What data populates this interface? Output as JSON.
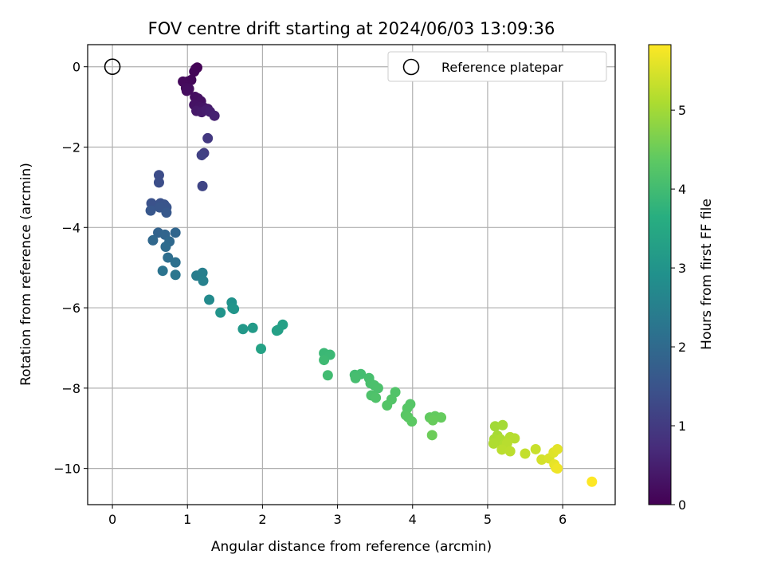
{
  "chart_data": {
    "type": "scatter",
    "title": "FOV centre drift starting at 2024/06/03 13:09:36",
    "xlabel": "Angular distance from reference (arcmin)",
    "ylabel": "Rotation from reference (arcmin)",
    "xlim": [
      -0.33,
      6.7
    ],
    "ylim": [
      -10.9,
      0.55
    ],
    "xticks": [
      0,
      1,
      2,
      3,
      4,
      5,
      6
    ],
    "yticks": [
      0,
      -2,
      -4,
      -6,
      -8,
      -10
    ],
    "xtick_labels": [
      "0",
      "1",
      "2",
      "3",
      "4",
      "5",
      "6"
    ],
    "ytick_labels": [
      "0",
      "−2",
      "−4",
      "−6",
      "−8",
      "−10"
    ],
    "grid": true,
    "legend": {
      "placement": "top-right",
      "label": "Reference platepar"
    },
    "reference_point": {
      "x": 0,
      "y": 0
    },
    "colorbar": {
      "label": "Hours from first FF file",
      "colormap": "viridis",
      "min": 0,
      "max": 5.83,
      "ticks": [
        0,
        1,
        2,
        3,
        4,
        5
      ],
      "tick_labels": [
        "0",
        "1",
        "2",
        "3",
        "4",
        "5"
      ]
    },
    "points": [
      {
        "x": 1.13,
        "y": -0.02,
        "c": 0.03
      },
      {
        "x": 1.11,
        "y": -0.05,
        "c": 0.05
      },
      {
        "x": 1.09,
        "y": -0.12,
        "c": 0.07
      },
      {
        "x": 1.05,
        "y": -0.33,
        "c": 0.1
      },
      {
        "x": 1.0,
        "y": -0.37,
        "c": 0.12
      },
      {
        "x": 0.94,
        "y": -0.37,
        "c": 0.14
      },
      {
        "x": 0.98,
        "y": -0.53,
        "c": 0.16
      },
      {
        "x": 1.02,
        "y": -0.55,
        "c": 0.18
      },
      {
        "x": 0.99,
        "y": -0.6,
        "c": 0.2
      },
      {
        "x": 1.1,
        "y": -0.75,
        "c": 0.22
      },
      {
        "x": 1.14,
        "y": -0.79,
        "c": 0.24
      },
      {
        "x": 1.18,
        "y": -0.86,
        "c": 0.27
      },
      {
        "x": 1.09,
        "y": -0.95,
        "c": 0.3
      },
      {
        "x": 1.16,
        "y": -1.0,
        "c": 0.32
      },
      {
        "x": 1.22,
        "y": -1.02,
        "c": 0.35
      },
      {
        "x": 1.27,
        "y": -1.05,
        "c": 0.38
      },
      {
        "x": 1.12,
        "y": -1.1,
        "c": 0.4
      },
      {
        "x": 1.19,
        "y": -1.13,
        "c": 0.43
      },
      {
        "x": 1.25,
        "y": -1.08,
        "c": 0.46
      },
      {
        "x": 1.3,
        "y": -1.12,
        "c": 0.5
      },
      {
        "x": 1.36,
        "y": -1.22,
        "c": 0.55
      },
      {
        "x": 1.27,
        "y": -1.78,
        "c": 0.95
      },
      {
        "x": 1.22,
        "y": -2.15,
        "c": 1.05
      },
      {
        "x": 1.19,
        "y": -2.2,
        "c": 1.12
      },
      {
        "x": 1.2,
        "y": -2.97,
        "c": 1.2
      },
      {
        "x": 0.62,
        "y": -2.7,
        "c": 1.35
      },
      {
        "x": 0.62,
        "y": -2.88,
        "c": 1.38
      },
      {
        "x": 0.52,
        "y": -3.4,
        "c": 1.45
      },
      {
        "x": 0.64,
        "y": -3.4,
        "c": 1.48
      },
      {
        "x": 0.69,
        "y": -3.43,
        "c": 1.5
      },
      {
        "x": 0.72,
        "y": -3.5,
        "c": 1.52
      },
      {
        "x": 0.63,
        "y": -3.5,
        "c": 1.55
      },
      {
        "x": 0.51,
        "y": -3.58,
        "c": 1.58
      },
      {
        "x": 0.72,
        "y": -3.63,
        "c": 1.62
      },
      {
        "x": 0.61,
        "y": -4.13,
        "c": 1.85
      },
      {
        "x": 0.7,
        "y": -4.18,
        "c": 1.9
      },
      {
        "x": 0.84,
        "y": -4.13,
        "c": 1.92
      },
      {
        "x": 0.54,
        "y": -4.32,
        "c": 1.95
      },
      {
        "x": 0.76,
        "y": -4.35,
        "c": 1.98
      },
      {
        "x": 0.71,
        "y": -4.48,
        "c": 2.02
      },
      {
        "x": 0.74,
        "y": -4.75,
        "c": 2.1
      },
      {
        "x": 0.84,
        "y": -4.87,
        "c": 2.15
      },
      {
        "x": 0.67,
        "y": -5.08,
        "c": 2.22
      },
      {
        "x": 0.84,
        "y": -5.18,
        "c": 2.28
      },
      {
        "x": 1.12,
        "y": -5.2,
        "c": 2.45
      },
      {
        "x": 1.2,
        "y": -5.13,
        "c": 2.5
      },
      {
        "x": 1.21,
        "y": -5.33,
        "c": 2.55
      },
      {
        "x": 1.29,
        "y": -5.8,
        "c": 2.75
      },
      {
        "x": 1.59,
        "y": -5.87,
        "c": 2.95
      },
      {
        "x": 1.6,
        "y": -6.0,
        "c": 2.98
      },
      {
        "x": 1.44,
        "y": -6.12,
        "c": 3.0
      },
      {
        "x": 1.62,
        "y": -6.03,
        "c": 3.02
      },
      {
        "x": 1.74,
        "y": -6.53,
        "c": 3.1
      },
      {
        "x": 1.87,
        "y": -6.5,
        "c": 3.15
      },
      {
        "x": 2.21,
        "y": -6.55,
        "c": 3.25
      },
      {
        "x": 2.27,
        "y": -6.42,
        "c": 3.28
      },
      {
        "x": 2.19,
        "y": -6.57,
        "c": 3.3
      },
      {
        "x": 1.98,
        "y": -7.02,
        "c": 3.35
      },
      {
        "x": 2.82,
        "y": -7.13,
        "c": 3.9
      },
      {
        "x": 2.9,
        "y": -7.17,
        "c": 3.92
      },
      {
        "x": 2.82,
        "y": -7.3,
        "c": 3.95
      },
      {
        "x": 2.87,
        "y": -7.68,
        "c": 4.0
      },
      {
        "x": 3.23,
        "y": -7.67,
        "c": 4.02
      },
      {
        "x": 3.31,
        "y": -7.65,
        "c": 4.04
      },
      {
        "x": 3.24,
        "y": -7.75,
        "c": 4.06
      },
      {
        "x": 3.42,
        "y": -7.75,
        "c": 4.08
      },
      {
        "x": 3.44,
        "y": -7.88,
        "c": 4.1
      },
      {
        "x": 3.49,
        "y": -7.93,
        "c": 4.12
      },
      {
        "x": 3.54,
        "y": -8.0,
        "c": 4.14
      },
      {
        "x": 3.45,
        "y": -8.18,
        "c": 4.16
      },
      {
        "x": 3.51,
        "y": -8.24,
        "c": 4.18
      },
      {
        "x": 3.77,
        "y": -8.1,
        "c": 4.2
      },
      {
        "x": 3.72,
        "y": -8.28,
        "c": 4.22
      },
      {
        "x": 3.66,
        "y": -8.43,
        "c": 4.24
      },
      {
        "x": 3.97,
        "y": -8.4,
        "c": 4.26
      },
      {
        "x": 3.93,
        "y": -8.5,
        "c": 4.28
      },
      {
        "x": 3.91,
        "y": -8.67,
        "c": 4.3
      },
      {
        "x": 3.94,
        "y": -8.72,
        "c": 4.32
      },
      {
        "x": 3.99,
        "y": -8.83,
        "c": 4.34
      },
      {
        "x": 4.23,
        "y": -8.73,
        "c": 4.4
      },
      {
        "x": 4.3,
        "y": -8.7,
        "c": 4.42
      },
      {
        "x": 4.38,
        "y": -8.73,
        "c": 4.44
      },
      {
        "x": 4.27,
        "y": -8.8,
        "c": 4.46
      },
      {
        "x": 4.26,
        "y": -9.17,
        "c": 4.5
      },
      {
        "x": 5.1,
        "y": -8.95,
        "c": 5.0
      },
      {
        "x": 5.2,
        "y": -8.92,
        "c": 5.02
      },
      {
        "x": 5.13,
        "y": -9.18,
        "c": 5.04
      },
      {
        "x": 5.09,
        "y": -9.27,
        "c": 5.06
      },
      {
        "x": 5.13,
        "y": -9.32,
        "c": 5.08
      },
      {
        "x": 5.17,
        "y": -9.27,
        "c": 5.1
      },
      {
        "x": 5.08,
        "y": -9.38,
        "c": 5.12
      },
      {
        "x": 5.22,
        "y": -9.4,
        "c": 5.14
      },
      {
        "x": 5.3,
        "y": -9.22,
        "c": 5.16
      },
      {
        "x": 5.36,
        "y": -9.25,
        "c": 5.18
      },
      {
        "x": 5.26,
        "y": -9.37,
        "c": 5.2
      },
      {
        "x": 5.19,
        "y": -9.53,
        "c": 5.22
      },
      {
        "x": 5.3,
        "y": -9.57,
        "c": 5.24
      },
      {
        "x": 5.5,
        "y": -9.63,
        "c": 5.3
      },
      {
        "x": 5.64,
        "y": -9.52,
        "c": 5.35
      },
      {
        "x": 5.72,
        "y": -9.78,
        "c": 5.45
      },
      {
        "x": 5.82,
        "y": -9.75,
        "c": 5.5
      },
      {
        "x": 5.88,
        "y": -9.6,
        "c": 5.55
      },
      {
        "x": 5.93,
        "y": -9.52,
        "c": 5.58
      },
      {
        "x": 5.89,
        "y": -9.9,
        "c": 5.62
      },
      {
        "x": 5.91,
        "y": -9.98,
        "c": 5.66
      },
      {
        "x": 5.93,
        "y": -10.0,
        "c": 5.7
      },
      {
        "x": 6.39,
        "y": -10.33,
        "c": 5.83
      }
    ]
  }
}
